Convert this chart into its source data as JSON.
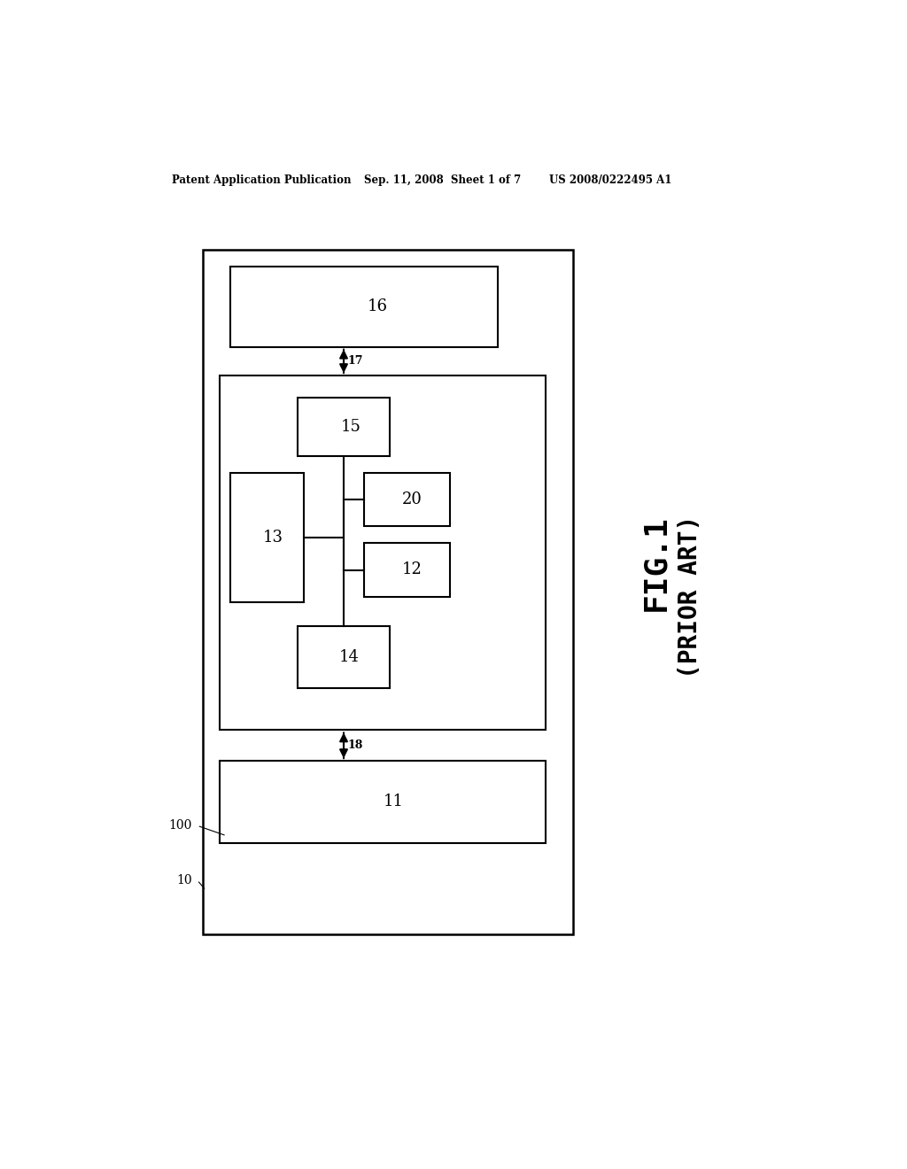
{
  "bg_color": "#ffffff",
  "header_left": "Patent Application Publication",
  "header_mid": "Sep. 11, 2008  Sheet 1 of 7",
  "header_right": "US 2008/0222495 A1",
  "fig_label": "FIG.1",
  "fig_sublabel": "(PRIOR ART)",
  "label_10": "10",
  "label_100": "100",
  "label_11": "11",
  "label_12": "12",
  "label_13": "13",
  "label_14": "14",
  "label_15": "15",
  "label_16": "16",
  "label_17": "17",
  "label_18": "18",
  "label_20": "20",
  "line_color": "#000000",
  "lw": 1.5
}
